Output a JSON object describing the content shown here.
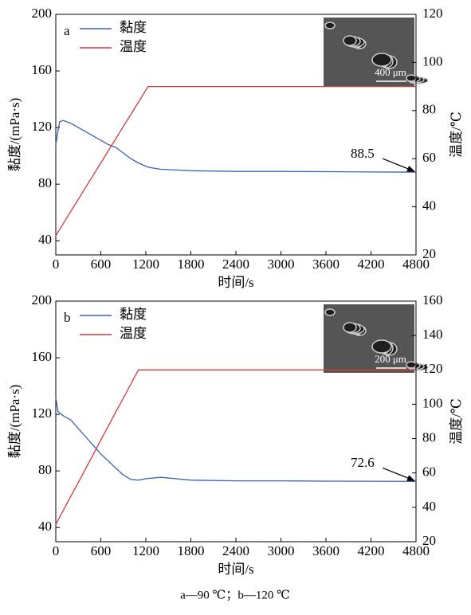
{
  "chart_data": [
    {
      "type": "line",
      "panel_label": "a",
      "xlabel": "时间/s",
      "ylabel": "黏度/(mPa·s)",
      "y2label": "温度/℃",
      "x": [
        0,
        50,
        100,
        200,
        300,
        400,
        500,
        600,
        700,
        800,
        900,
        1000,
        1100,
        1230,
        1400,
        1600,
        1800,
        2400,
        3000,
        3600,
        4200,
        4800
      ],
      "series": [
        {
          "name": "黏度",
          "color": "#3b62b0",
          "values": [
            108,
            124,
            125,
            123,
            120,
            117,
            114,
            111,
            108,
            106,
            102,
            98,
            95,
            92,
            90.5,
            90,
            89.5,
            89,
            89,
            88.8,
            88.6,
            88.5
          ]
        },
        {
          "name": "温度",
          "color": "#d03a3a",
          "axis": "y2",
          "values": [
            28,
            30.5,
            33,
            38.1,
            43.1,
            48.2,
            53.2,
            58.2,
            63.3,
            68.3,
            73.4,
            78.4,
            83.4,
            90,
            90,
            90,
            90,
            90,
            90,
            90,
            90,
            90
          ]
        }
      ],
      "xlim": [
        0,
        4800
      ],
      "xticks": [
        0,
        600,
        1200,
        1800,
        2400,
        3000,
        3600,
        4200,
        4800
      ],
      "ylim": [
        30,
        200
      ],
      "yticks": [
        40,
        80,
        120,
        160,
        200
      ],
      "y2lim": [
        20,
        120
      ],
      "y2ticks": [
        20,
        40,
        60,
        80,
        100,
        120
      ],
      "legend": "upper left",
      "annotation": "88.5",
      "inset_scale": "400 μm"
    },
    {
      "type": "line",
      "panel_label": "b",
      "xlabel": "时间/s",
      "ylabel": "黏度/(mPa·s)",
      "y2label": "温度/℃",
      "x": [
        0,
        30,
        100,
        200,
        300,
        400,
        500,
        600,
        700,
        800,
        900,
        1000,
        1100,
        1200,
        1400,
        1600,
        1800,
        2400,
        3000,
        3600,
        4200,
        4800
      ],
      "series": [
        {
          "name": "黏度",
          "color": "#3b62b0",
          "values": [
            132,
            122,
            119,
            116,
            110,
            104,
            98,
            92,
            87,
            82,
            77,
            74,
            73.5,
            74.5,
            75.5,
            74.5,
            73.5,
            73,
            73,
            72.8,
            72.7,
            72.6
          ]
        },
        {
          "name": "温度",
          "color": "#d03a3a",
          "axis": "y2",
          "values": [
            30,
            32.5,
            38.2,
            46.4,
            54.5,
            62.7,
            70.9,
            79.1,
            87.3,
            95.5,
            103.6,
            111.8,
            120,
            120,
            120,
            120,
            120,
            120,
            120,
            120,
            120,
            120
          ]
        }
      ],
      "xlim": [
        0,
        4800
      ],
      "xticks": [
        0,
        600,
        1200,
        1800,
        2400,
        3000,
        3600,
        4200,
        4800
      ],
      "ylim": [
        30,
        200
      ],
      "yticks": [
        40,
        80,
        120,
        160,
        200
      ],
      "y2lim": [
        20,
        160
      ],
      "y2ticks": [
        20,
        40,
        60,
        80,
        100,
        120,
        140,
        160
      ],
      "legend": "upper left",
      "annotation": "72.6",
      "inset_scale": "200 μm"
    }
  ],
  "caption": "a—90 ℃；b—120 ℃"
}
